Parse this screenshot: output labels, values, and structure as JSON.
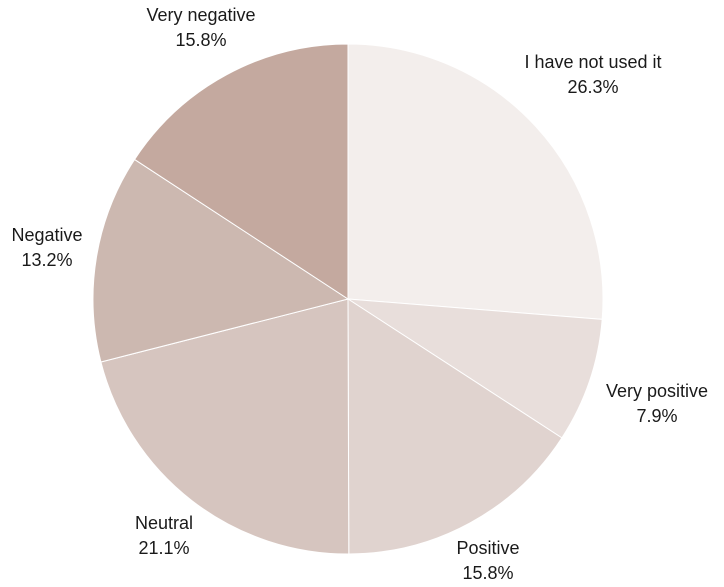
{
  "chart_data": {
    "type": "pie",
    "start_at": "12 o'clock",
    "direction": "clockwise",
    "slices": [
      {
        "label": "I have not used it",
        "percent_text": "26.3%",
        "value": 26.3,
        "color": "#f3eeec"
      },
      {
        "label": "Very positive",
        "percent_text": "7.9%",
        "value": 7.9,
        "color": "#e8dedb"
      },
      {
        "label": "Positive",
        "percent_text": "15.8%",
        "value": 15.8,
        "color": "#e0d3cf"
      },
      {
        "label": "Neutral",
        "percent_text": "21.1%",
        "value": 21.1,
        "color": "#d6c5bf"
      },
      {
        "label": "Negative",
        "percent_text": "13.2%",
        "value": 13.2,
        "color": "#ccb8b0"
      },
      {
        "label": "Very negative",
        "percent_text": "15.8%",
        "value": 15.8,
        "color": "#c4a99f"
      }
    ]
  }
}
